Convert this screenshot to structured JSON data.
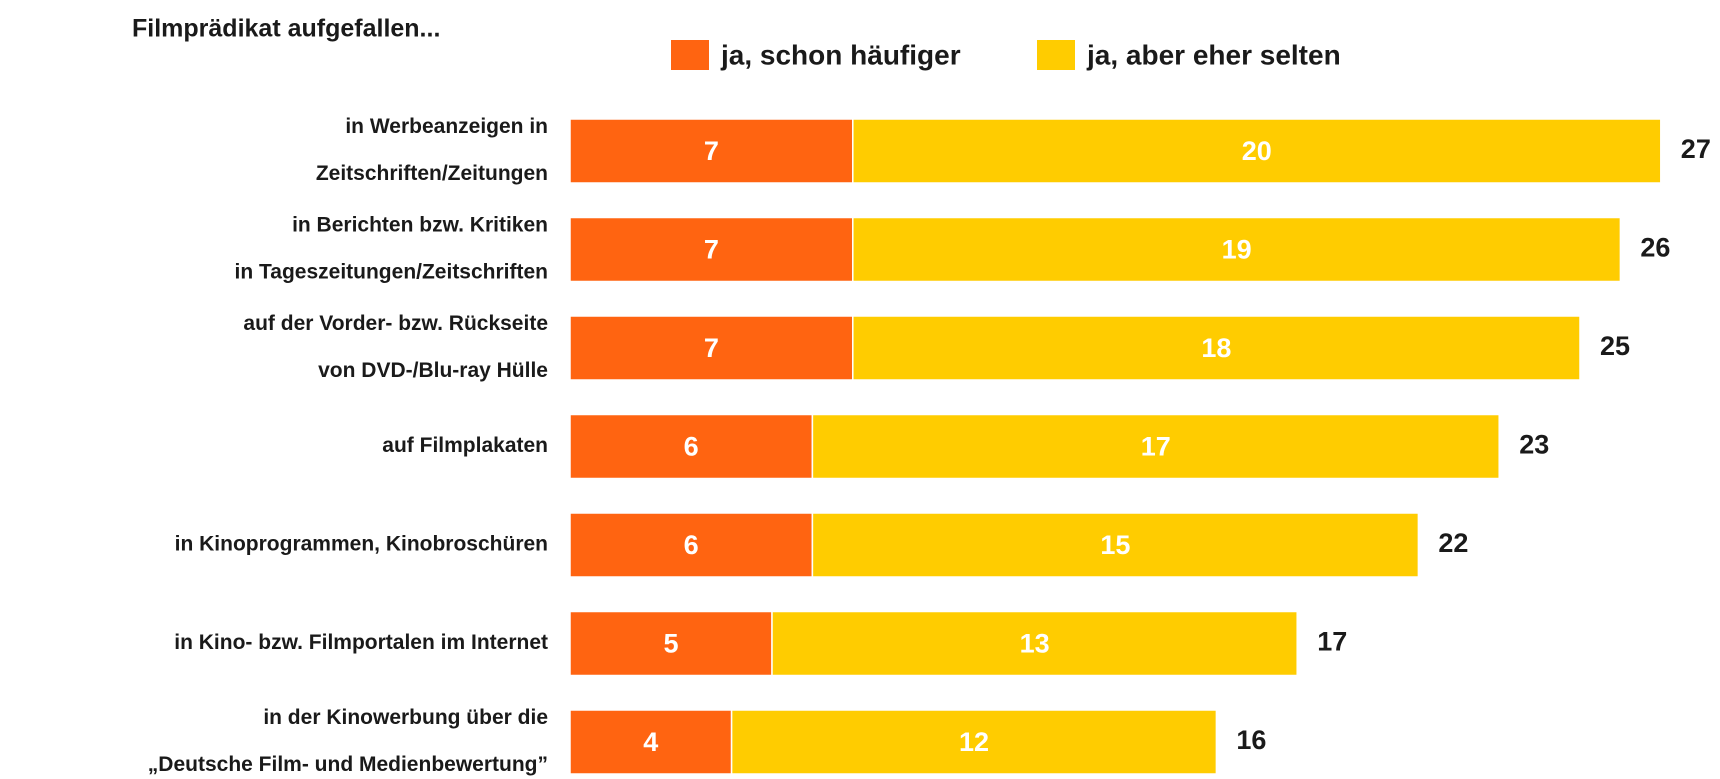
{
  "chart_data": {
    "type": "stacked-bar-horizontal",
    "title": "Filmprädikat aufgefallen...",
    "categories": [
      [
        "in Werbeanzeigen in",
        "Zeitschriften/Zeitungen"
      ],
      [
        "in Berichten bzw. Kritiken",
        "in Tageszeitungen/Zeitschriften"
      ],
      [
        "auf der Vorder- bzw. Rückseite",
        "von DVD-/Blu-ray Hülle"
      ],
      [
        "auf Filmplakaten"
      ],
      [
        "in Kinoprogrammen, Kinobroschüren"
      ],
      [
        "in Kino- bzw. Filmportalen im Internet"
      ],
      [
        "in der Kinowerbung über die",
        "„Deutsche Film- und Medienbewertung”"
      ]
    ],
    "series": [
      {
        "name": "ja, schon häufiger",
        "color": "#ff6411",
        "values": [
          7,
          7,
          7,
          6,
          6,
          5,
          4
        ]
      },
      {
        "name": "ja, aber eher selten",
        "color": "#ffcc00",
        "values": [
          20,
          19,
          18,
          17,
          15,
          13,
          12
        ]
      }
    ],
    "totals": [
      27,
      26,
      25,
      23,
      22,
      17,
      16
    ]
  }
}
